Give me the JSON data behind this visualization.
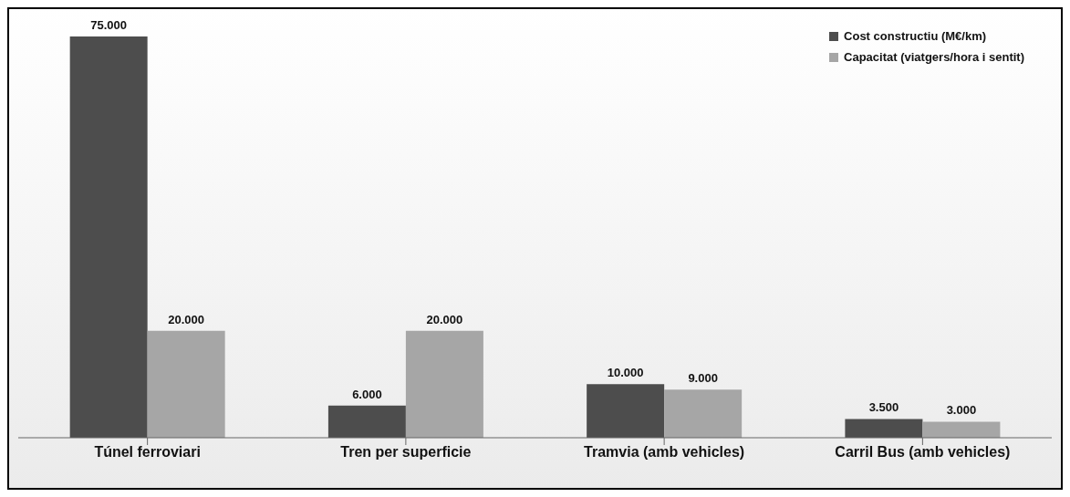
{
  "chart_data": {
    "type": "bar",
    "categories": [
      "Túnel ferroviari",
      "Tren per superficie",
      "Tramvia (amb vehicles)",
      "Carril Bus (amb vehicles)"
    ],
    "series": [
      {
        "name": "Cost constructiu (M€/km)",
        "color": "#4d4d4d",
        "values": [
          75000,
          6000,
          10000,
          3500
        ],
        "value_labels": [
          "75.000",
          "6.000",
          "10.000",
          "3.500"
        ]
      },
      {
        "name": "Capacitat (viatgers/hora i sentit)",
        "color": "#a6a6a6",
        "values": [
          20000,
          20000,
          9000,
          3000
        ],
        "value_labels": [
          "20.000",
          "20.000",
          "9.000",
          "3.000"
        ]
      }
    ],
    "legend": "top right",
    "tick_labels": "x"
  }
}
